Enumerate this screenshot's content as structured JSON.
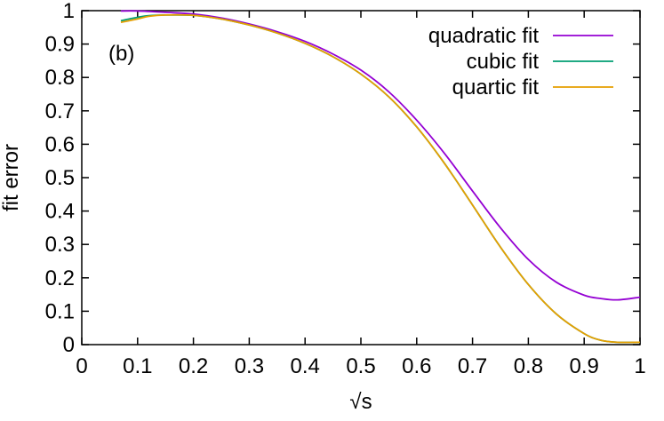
{
  "chart_data": {
    "type": "line",
    "panel_label": "(b)",
    "xlabel": "√s",
    "ylabel": "fit error",
    "xlim": [
      0,
      1
    ],
    "ylim": [
      0,
      1
    ],
    "xticks": [
      0,
      0.1,
      0.2,
      0.3,
      0.4,
      0.5,
      0.6,
      0.7,
      0.8,
      0.9,
      1
    ],
    "xtick_labels": [
      "0",
      "0.1",
      "0.2",
      "0.3",
      "0.4",
      "0.5",
      "0.6",
      "0.7",
      "0.8",
      "0.9",
      "1"
    ],
    "yticks": [
      0,
      0.1,
      0.2,
      0.3,
      0.4,
      0.5,
      0.6,
      0.7,
      0.8,
      0.9,
      1
    ],
    "ytick_labels": [
      "0",
      "0.1",
      "0.2",
      "0.3",
      "0.4",
      "0.5",
      "0.6",
      "0.7",
      "0.8",
      "0.9",
      "1"
    ],
    "grid": false,
    "legend_position": "top-right",
    "series": [
      {
        "name": "quadratic fit",
        "color": "#9400d3",
        "x": [
          0.07,
          0.1,
          0.15,
          0.2,
          0.25,
          0.3,
          0.35,
          0.4,
          0.45,
          0.5,
          0.55,
          0.6,
          0.65,
          0.7,
          0.75,
          0.8,
          0.85,
          0.9,
          0.93,
          0.96,
          1.0
        ],
        "y": [
          0.999,
          0.999,
          0.995,
          0.99,
          0.978,
          0.96,
          0.937,
          0.908,
          0.87,
          0.822,
          0.757,
          0.672,
          0.572,
          0.46,
          0.35,
          0.255,
          0.187,
          0.148,
          0.138,
          0.134,
          0.142
        ]
      },
      {
        "name": "cubic fit",
        "color": "#009e73",
        "x": [
          0.07,
          0.1,
          0.12,
          0.15,
          0.2,
          0.25,
          0.3,
          0.35,
          0.4,
          0.45,
          0.5,
          0.55,
          0.6,
          0.65,
          0.7,
          0.75,
          0.8,
          0.85,
          0.9,
          0.93,
          0.96,
          1.0
        ],
        "y": [
          0.97,
          0.98,
          0.985,
          0.987,
          0.986,
          0.975,
          0.957,
          0.933,
          0.902,
          0.862,
          0.81,
          0.742,
          0.652,
          0.542,
          0.418,
          0.292,
          0.18,
          0.092,
          0.033,
          0.013,
          0.007,
          0.007
        ]
      },
      {
        "name": "quartic fit",
        "color": "#e69f00",
        "x": [
          0.07,
          0.1,
          0.12,
          0.15,
          0.2,
          0.25,
          0.3,
          0.35,
          0.4,
          0.45,
          0.5,
          0.55,
          0.6,
          0.65,
          0.7,
          0.75,
          0.8,
          0.85,
          0.9,
          0.93,
          0.96,
          1.0
        ],
        "y": [
          0.965,
          0.975,
          0.983,
          0.987,
          0.986,
          0.975,
          0.957,
          0.933,
          0.902,
          0.862,
          0.81,
          0.742,
          0.652,
          0.542,
          0.418,
          0.292,
          0.18,
          0.092,
          0.033,
          0.013,
          0.007,
          0.007
        ]
      }
    ]
  }
}
